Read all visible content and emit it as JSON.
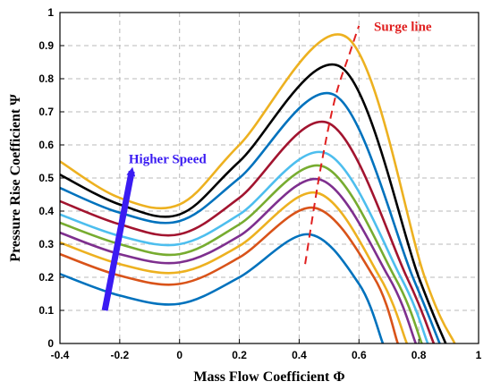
{
  "chart_data": {
    "type": "line",
    "title": "",
    "xlabel": "Mass Flow Coefficient Φ",
    "ylabel": "Pressure Rise Coefficient Ψ",
    "xlim": [
      -0.4,
      1.0
    ],
    "ylim": [
      0,
      1.0
    ],
    "xticks": [
      "-0.4",
      "-0.2",
      "0",
      "0.2",
      "0.4",
      "0.6",
      "0.8",
      "1"
    ],
    "yticks": [
      "0",
      "0.1",
      "0.2",
      "0.3",
      "0.4",
      "0.5",
      "0.6",
      "0.7",
      "0.8",
      "0.9",
      "1"
    ],
    "grid": true,
    "series": [
      {
        "color": "#0072BD",
        "values": [
          [
            -0.4,
            0.21
          ],
          [
            -0.2,
            0.145
          ],
          [
            0,
            0.12
          ],
          [
            0.2,
            0.2
          ],
          [
            0.43,
            0.33
          ],
          [
            0.6,
            0.18
          ],
          [
            0.68,
            0.0
          ]
        ]
      },
      {
        "color": "#D95319",
        "values": [
          [
            -0.4,
            0.27
          ],
          [
            -0.2,
            0.205
          ],
          [
            0,
            0.18
          ],
          [
            0.2,
            0.26
          ],
          [
            0.45,
            0.41
          ],
          [
            0.65,
            0.2
          ],
          [
            0.73,
            0.0
          ]
        ]
      },
      {
        "color": "#EDB120",
        "values": [
          [
            -0.4,
            0.305
          ],
          [
            -0.2,
            0.24
          ],
          [
            0,
            0.215
          ],
          [
            0.2,
            0.295
          ],
          [
            0.46,
            0.455
          ],
          [
            0.67,
            0.2
          ],
          [
            0.76,
            0.0
          ]
        ]
      },
      {
        "color": "#7E2F8E",
        "values": [
          [
            -0.4,
            0.335
          ],
          [
            -0.2,
            0.27
          ],
          [
            0,
            0.245
          ],
          [
            0.2,
            0.325
          ],
          [
            0.47,
            0.495
          ],
          [
            0.7,
            0.2
          ],
          [
            0.79,
            0.0
          ]
        ]
      },
      {
        "color": "#77AC30",
        "values": [
          [
            -0.4,
            0.365
          ],
          [
            -0.2,
            0.3
          ],
          [
            0,
            0.27
          ],
          [
            0.2,
            0.36
          ],
          [
            0.48,
            0.535
          ],
          [
            0.72,
            0.2
          ],
          [
            0.81,
            0.0
          ]
        ]
      },
      {
        "color": "#4DBEEE",
        "values": [
          [
            -0.4,
            0.39
          ],
          [
            -0.2,
            0.325
          ],
          [
            0,
            0.3
          ],
          [
            0.2,
            0.39
          ],
          [
            0.49,
            0.575
          ],
          [
            0.74,
            0.2
          ],
          [
            0.83,
            0.0
          ]
        ]
      },
      {
        "color": "#A2142F",
        "values": [
          [
            -0.4,
            0.43
          ],
          [
            -0.2,
            0.36
          ],
          [
            0,
            0.33
          ],
          [
            0.2,
            0.44
          ],
          [
            0.5,
            0.665
          ],
          [
            0.76,
            0.2
          ],
          [
            0.85,
            0.0
          ]
        ]
      },
      {
        "color": "#0072BD",
        "values": [
          [
            -0.4,
            0.47
          ],
          [
            -0.2,
            0.395
          ],
          [
            0,
            0.37
          ],
          [
            0.2,
            0.5
          ],
          [
            0.52,
            0.75
          ],
          [
            0.78,
            0.2
          ],
          [
            0.87,
            0.0
          ]
        ]
      },
      {
        "color": "#000000",
        "values": [
          [
            -0.4,
            0.51
          ],
          [
            -0.2,
            0.42
          ],
          [
            0,
            0.39
          ],
          [
            0.2,
            0.55
          ],
          [
            0.54,
            0.835
          ],
          [
            0.8,
            0.2
          ],
          [
            0.89,
            0.0
          ]
        ]
      },
      {
        "color": "#EDB120",
        "values": [
          [
            -0.4,
            0.55
          ],
          [
            -0.2,
            0.44
          ],
          [
            0,
            0.42
          ],
          [
            0.2,
            0.6
          ],
          [
            0.56,
            0.925
          ],
          [
            0.82,
            0.2
          ],
          [
            0.92,
            0.0
          ]
        ]
      }
    ],
    "surge_line": {
      "label": "Surge line",
      "color": "#E02020",
      "points": [
        [
          0.42,
          0.24
        ],
        [
          0.47,
          0.52
        ],
        [
          0.52,
          0.74
        ],
        [
          0.57,
          0.88
        ],
        [
          0.6,
          0.96
        ]
      ]
    },
    "speed_arrow": {
      "label": "Higher Speed",
      "color": "#3A1BF2",
      "from": [
        -0.25,
        0.1
      ],
      "to": [
        -0.16,
        0.52
      ]
    }
  }
}
